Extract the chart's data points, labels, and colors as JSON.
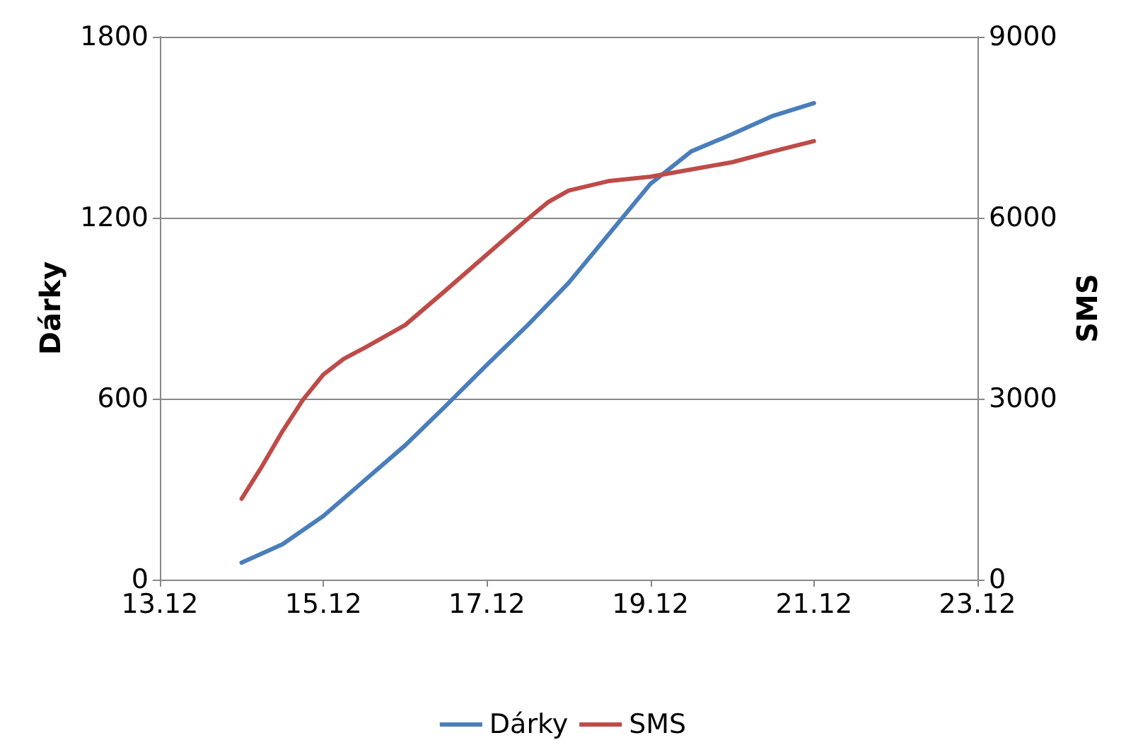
{
  "chart_data": {
    "type": "line",
    "ylabel": "Dárky",
    "y2label": "SMS",
    "xlim": [
      "--12-13",
      "--12-23"
    ],
    "xticks": [
      {
        "value": "--12-13",
        "label": "13.12"
      },
      {
        "value": "--12-15",
        "label": "15.12"
      },
      {
        "value": "--12-17",
        "label": "17.12"
      },
      {
        "value": "--12-19",
        "label": "19.12"
      },
      {
        "value": "--12-21",
        "label": "21.12"
      },
      {
        "value": "--12-23",
        "label": "23.12"
      }
    ],
    "ylim": [
      0,
      1800
    ],
    "yticks": [
      0,
      600,
      1200,
      1800
    ],
    "y2lim": [
      0,
      9000
    ],
    "y2ticks": [
      0,
      3000,
      6000,
      9000
    ],
    "grid": "y",
    "legend": "bottom",
    "marker": "none",
    "line_style": "solid",
    "series": [
      {
        "name": "Dárky",
        "color": "#4a7ebb",
        "x": [
          "--12-14",
          "--12-14T12:00",
          "--12-15",
          "--12-15T12:00",
          "--12-16",
          "--12-16T12:00",
          "--12-17",
          "--12-17T12:00",
          "--12-18",
          "--12-18T12:00",
          "--12-19",
          "--12-19T12:00",
          "--12-20",
          "--12-20T12:00",
          "--12-21"
        ],
        "values": [
          56,
          117,
          211,
          328,
          445,
          577,
          712,
          844,
          984,
          1148,
          1312,
          1420,
          1477,
          1538,
          1580
        ]
      },
      {
        "name": "SMS",
        "color": "#be4b48",
        "axis": "y2",
        "x": [
          "--12-14",
          "--12-14T06:00",
          "--12-14T12:00",
          "--12-14T18:00",
          "--12-15",
          "--12-15T06:00",
          "--12-15T12:00",
          "--12-16",
          "--12-16T12:00",
          "--12-17",
          "--12-17T12:00",
          "--12-17T18:00",
          "--12-18",
          "--12-18T12:00",
          "--12-19",
          "--12-19T12:00",
          "--12-20",
          "--12-20T12:00",
          "--12-21"
        ],
        "values": [
          1340,
          1880,
          2460,
          2980,
          3400,
          3660,
          3840,
          4220,
          4800,
          5390,
          5980,
          6260,
          6450,
          6610,
          6680,
          6800,
          6920,
          7100,
          7270
        ]
      }
    ]
  }
}
